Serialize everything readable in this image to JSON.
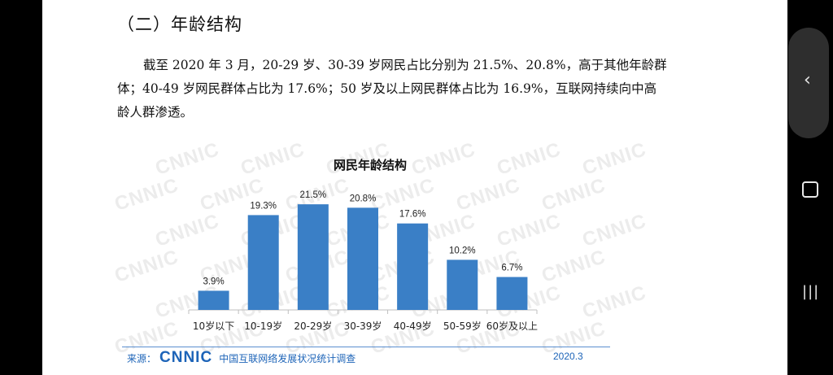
{
  "section_title": "（二）年龄结构",
  "paragraph": {
    "line1": "截至 2020 年 3 月，20-29 岁、30-39 岁网民占比分别为 21.5%、20.8%，高于其他年龄群",
    "line2": "体；40-49 岁网民群体占比为 17.6%；50 岁及以上网民群体占比为 16.9%，互联网持续向中高",
    "line3": "龄人群渗透。"
  },
  "watermark_text": "CNNIC",
  "chart_data": {
    "type": "bar",
    "title": "网民年龄结构",
    "categories": [
      "10岁以下",
      "10-19岁",
      "20-29岁",
      "30-39岁",
      "40-49岁",
      "50-59岁",
      "60岁及以上"
    ],
    "values": [
      3.9,
      19.3,
      21.5,
      20.8,
      17.6,
      10.2,
      6.7
    ],
    "value_labels": [
      "3.9%",
      "19.3%",
      "21.5%",
      "20.8%",
      "17.6%",
      "10.2%",
      "6.7%"
    ],
    "unit": "%",
    "ylim": [
      0,
      25
    ],
    "grid": false,
    "bar_color": "#3a7fc6"
  },
  "footer": {
    "source_label": "来源：",
    "logo": "CNNIC",
    "org": "中国互联网络发展状况统计调查",
    "date": "2020.3"
  },
  "nav": {
    "back_icon": "‹",
    "recent_icon": "|||"
  },
  "colors": {
    "accent": "#1d64b8",
    "bar": "#3a7fc6"
  }
}
